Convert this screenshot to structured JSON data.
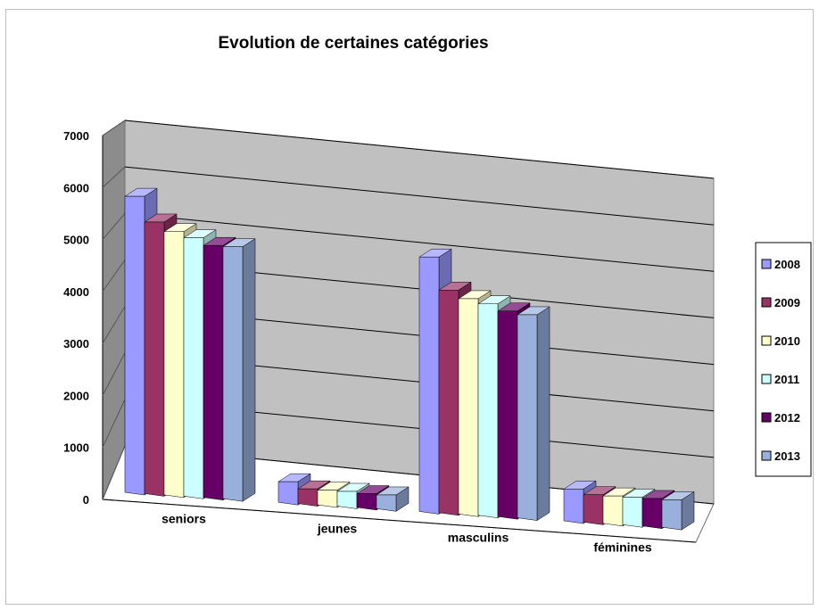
{
  "chart_data": {
    "type": "bar",
    "title": "Evolution de certaines catégories",
    "xlabel": "",
    "ylabel": "",
    "ylim": [
      0,
      7000
    ],
    "yticks": [
      0,
      1000,
      2000,
      3000,
      4000,
      5000,
      6000,
      7000
    ],
    "grid": true,
    "legend_position": "right",
    "categories": [
      "seniors",
      "jeunes",
      "masculins",
      "féminines"
    ],
    "series": [
      {
        "name": "2008",
        "color": "#9999ff",
        "values": [
          6050,
          420,
          5200,
          650
        ]
      },
      {
        "name": "2009",
        "color": "#993366",
        "values": [
          5550,
          300,
          4550,
          560
        ]
      },
      {
        "name": "2010",
        "color": "#ffffcc",
        "values": [
          5380,
          300,
          4400,
          560
        ]
      },
      {
        "name": "2011",
        "color": "#ccffff",
        "values": [
          5280,
          300,
          4320,
          560
        ]
      },
      {
        "name": "2012",
        "color": "#660066",
        "values": [
          5150,
          280,
          4200,
          560
        ]
      },
      {
        "name": "2013",
        "color": "#99b0dd",
        "values": [
          5150,
          280,
          4150,
          560
        ]
      }
    ]
  }
}
